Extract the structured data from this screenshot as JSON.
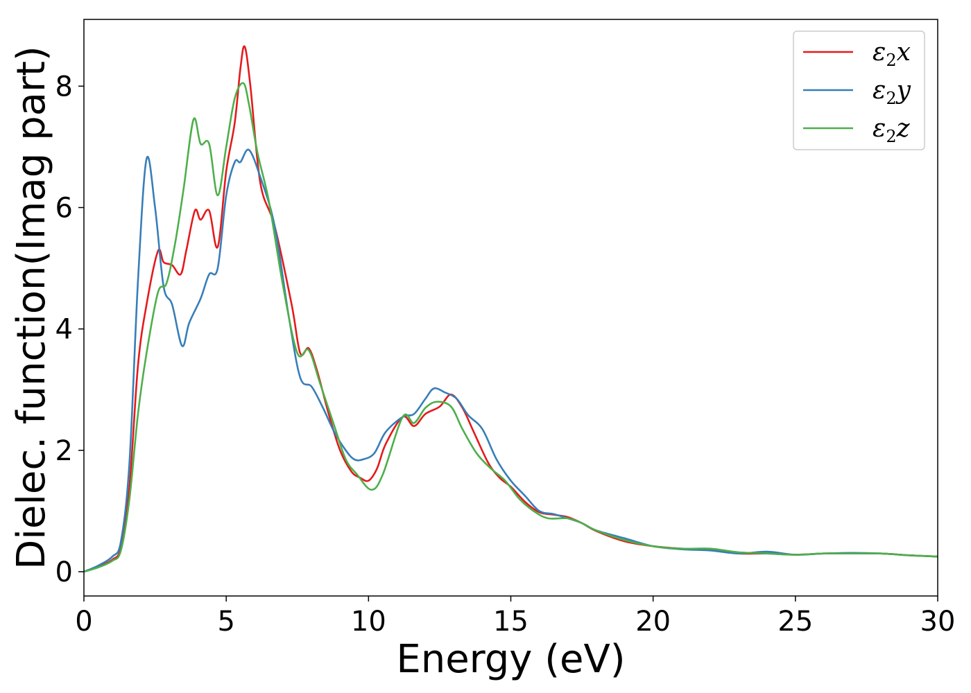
{
  "chart_data": {
    "type": "line",
    "xlabel": "Energy (eV)",
    "ylabel": "Dielec. function(Imag part)",
    "xlim": [
      0,
      30
    ],
    "ylim": [
      -0.4,
      9.1
    ],
    "xticks": [
      0,
      5,
      10,
      15,
      20,
      25,
      30
    ],
    "yticks": [
      0,
      2,
      4,
      6,
      8
    ],
    "grid": false,
    "legend_position": "top-right",
    "series": [
      {
        "name": "ε2x",
        "legend": {
          "base": "ε",
          "sub": "2",
          "axis": "x"
        },
        "color": "#e41a1c",
        "x": [
          0,
          0.5,
          1,
          1.3,
          1.6,
          1.9,
          2.2,
          2.6,
          2.8,
          3.1,
          3.4,
          3.6,
          3.9,
          4.1,
          4.4,
          4.7,
          5,
          5.3,
          5.5,
          5.65,
          5.85,
          6.2,
          6.7,
          7.3,
          7.6,
          7.9,
          8.2,
          8.6,
          9,
          9.4,
          9.7,
          10,
          10.3,
          10.6,
          11.2,
          11.6,
          12,
          12.5,
          12.9,
          13.3,
          13.7,
          14.2,
          14.6,
          15,
          15.5,
          16,
          16.5,
          17,
          17.5,
          18,
          19,
          20,
          21,
          22,
          23,
          24,
          25,
          26,
          27,
          28,
          29,
          30
        ],
        "y": [
          0,
          0.08,
          0.2,
          0.4,
          1.4,
          3.4,
          4.4,
          5.28,
          5.1,
          5.05,
          4.9,
          5.3,
          5.95,
          5.8,
          5.95,
          5.35,
          6.6,
          7.4,
          8.3,
          8.65,
          8,
          6.4,
          5.7,
          4.4,
          3.6,
          3.68,
          3.3,
          2.6,
          2,
          1.65,
          1.55,
          1.5,
          1.7,
          2.1,
          2.55,
          2.4,
          2.6,
          2.72,
          2.92,
          2.7,
          2.3,
          1.8,
          1.55,
          1.4,
          1.15,
          0.98,
          0.94,
          0.9,
          0.8,
          0.67,
          0.5,
          0.42,
          0.38,
          0.36,
          0.3,
          0.3,
          0.28,
          0.3,
          0.3,
          0.3,
          0.27,
          0.25
        ]
      },
      {
        "name": "ε2y",
        "legend": {
          "base": "ε",
          "sub": "2",
          "axis": "y"
        },
        "color": "#377eb8",
        "x": [
          0,
          0.5,
          1,
          1.3,
          1.6,
          1.9,
          2.2,
          2.5,
          2.8,
          3.1,
          3.45,
          3.7,
          4.1,
          4.4,
          4.7,
          5,
          5.3,
          5.5,
          5.8,
          6.2,
          6.7,
          7.2,
          7.6,
          8,
          8.4,
          8.8,
          9.2,
          9.5,
          9.8,
          10.2,
          10.6,
          11.2,
          11.6,
          12,
          12.3,
          12.7,
          13.1,
          13.5,
          14,
          14.5,
          15,
          15.5,
          16,
          16.5,
          17,
          17.5,
          18,
          19,
          20,
          21,
          22,
          23,
          24,
          25,
          26,
          27,
          28,
          29,
          30
        ],
        "y": [
          0,
          0.1,
          0.25,
          0.5,
          1.8,
          4.8,
          6.8,
          6,
          4.7,
          4.4,
          3.72,
          4.1,
          4.5,
          4.9,
          5,
          6.2,
          6.75,
          6.75,
          6.95,
          6.5,
          5.7,
          4.2,
          3.2,
          3.05,
          2.7,
          2.3,
          2,
          1.85,
          1.85,
          1.95,
          2.3,
          2.55,
          2.6,
          2.85,
          3.02,
          2.95,
          2.85,
          2.58,
          2.35,
          1.85,
          1.5,
          1.25,
          1,
          0.95,
          0.88,
          0.8,
          0.68,
          0.55,
          0.42,
          0.37,
          0.35,
          0.3,
          0.33,
          0.28,
          0.3,
          0.31,
          0.3,
          0.27,
          0.25
        ]
      },
      {
        "name": "ε2z",
        "legend": {
          "base": "ε",
          "sub": "2",
          "axis": "z"
        },
        "color": "#4daf4a",
        "x": [
          0,
          0.5,
          1,
          1.3,
          1.6,
          1.9,
          2.2,
          2.6,
          2.9,
          3.2,
          3.5,
          3.85,
          4.1,
          4.4,
          4.7,
          5,
          5.3,
          5.6,
          5.8,
          6.1,
          6.5,
          7,
          7.5,
          7.9,
          8.3,
          8.8,
          9.2,
          9.6,
          10.1,
          10.5,
          11.2,
          11.6,
          12,
          12.4,
          12.9,
          13.3,
          13.8,
          14.3,
          14.8,
          15.3,
          15.8,
          16.3,
          17,
          17.5,
          18,
          19,
          20,
          21,
          22,
          23,
          24,
          25,
          26,
          27,
          28,
          29,
          30
        ],
        "y": [
          0,
          0.07,
          0.18,
          0.35,
          1.2,
          2.6,
          3.6,
          4.6,
          4.75,
          5.4,
          6.3,
          7.45,
          7.05,
          7.05,
          6.2,
          7,
          7.8,
          8.05,
          7.7,
          6.9,
          6.1,
          4.7,
          3.6,
          3.65,
          3.1,
          2.4,
          1.85,
          1.6,
          1.35,
          1.6,
          2.55,
          2.45,
          2.7,
          2.8,
          2.72,
          2.35,
          1.95,
          1.7,
          1.5,
          1.2,
          1,
          0.88,
          0.88,
          0.8,
          0.68,
          0.52,
          0.42,
          0.38,
          0.38,
          0.32,
          0.3,
          0.28,
          0.3,
          0.3,
          0.3,
          0.27,
          0.25
        ]
      }
    ]
  }
}
